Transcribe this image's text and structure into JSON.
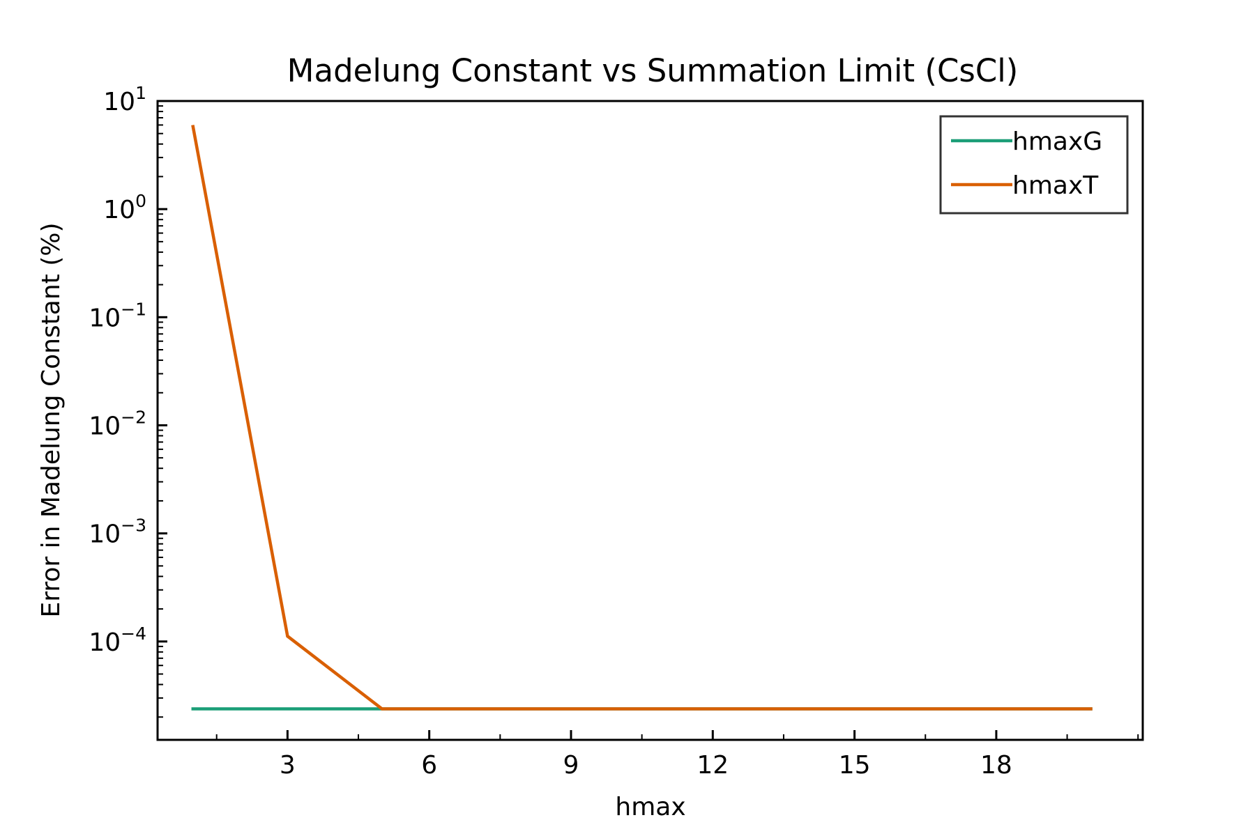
{
  "chart_data": {
    "type": "line",
    "title": "Madelung Constant vs Summation Limit (CsCl)",
    "xlabel": "hmax",
    "ylabel": "Error in Madelung Constant (%)",
    "x_scale": "linear",
    "y_scale": "log",
    "xlim": [
      0.25,
      21.1
    ],
    "ylim": [
      1.23e-05,
      10
    ],
    "x_ticks": [
      3,
      6,
      9,
      12,
      15,
      18
    ],
    "x_tick_labels": [
      "3",
      "6",
      "9",
      "12",
      "15",
      "18"
    ],
    "y_ticks": [
      1,
      0,
      -1,
      -2,
      -3,
      -4
    ],
    "y_tick_labels": [
      {
        "base": "10",
        "exp": "1"
      },
      {
        "base": "10",
        "exp": "0"
      },
      {
        "base": "10",
        "exp": "−1"
      },
      {
        "base": "10",
        "exp": "−2"
      },
      {
        "base": "10",
        "exp": "−3"
      },
      {
        "base": "10",
        "exp": "−4"
      }
    ],
    "grid": false,
    "legend_position": "top-right",
    "x": [
      1,
      3,
      5,
      7,
      9,
      11,
      13,
      15,
      17,
      19,
      20
    ],
    "series": [
      {
        "name": "hmaxG",
        "color": "#1b9e77",
        "x": [
          1,
          3,
          5,
          7,
          9,
          11,
          13,
          15,
          17,
          19,
          20
        ],
        "values": [
          2.38e-05,
          2.38e-05,
          2.38e-05,
          2.38e-05,
          2.38e-05,
          2.38e-05,
          2.38e-05,
          2.38e-05,
          2.38e-05,
          2.38e-05,
          2.38e-05
        ]
      },
      {
        "name": "hmaxT",
        "color": "#d95f02",
        "x": [
          1,
          3,
          5,
          7,
          9,
          11,
          13,
          15,
          17,
          19,
          20
        ],
        "values": [
          5.8,
          0.000112,
          2.38e-05,
          2.38e-05,
          2.38e-05,
          2.38e-05,
          2.38e-05,
          2.38e-05,
          2.38e-05,
          2.38e-05,
          2.38e-05
        ]
      }
    ]
  }
}
